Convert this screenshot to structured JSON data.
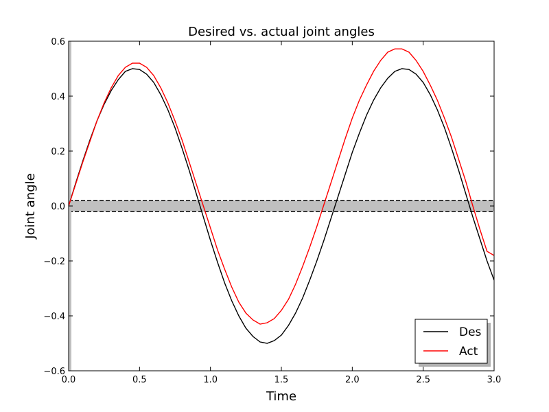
{
  "chart_data": {
    "type": "line",
    "title": "Desired vs. actual joint angles",
    "xlabel": "Time",
    "ylabel": "Joint angle",
    "xlim": [
      0.0,
      3.0
    ],
    "ylim": [
      -0.6,
      0.6
    ],
    "x_ticks": [
      0.0,
      0.5,
      1.0,
      1.5,
      2.0,
      2.5,
      3.0
    ],
    "x_tick_labels": [
      "0.0",
      "0.5",
      "1.0",
      "1.5",
      "2.0",
      "2.5",
      "3.0"
    ],
    "y_ticks": [
      -0.6,
      -0.4,
      -0.2,
      0.0,
      0.2,
      0.4,
      0.6
    ],
    "y_tick_labels": [
      "−0.6",
      "−0.4",
      "−0.2",
      "0.0",
      "0.2",
      "0.4",
      "0.6"
    ],
    "grid": false,
    "legend_position": "bottom-right",
    "shaded_band": {
      "y_min": -0.02,
      "y_max": 0.02,
      "color": "#c0c0c0",
      "border_style": "dashed"
    },
    "series": [
      {
        "name": "Des",
        "color": "#000000",
        "x": [
          0.0,
          0.05,
          0.1,
          0.15,
          0.2,
          0.25,
          0.3,
          0.35,
          0.4,
          0.45,
          0.5,
          0.55,
          0.6,
          0.65,
          0.7,
          0.75,
          0.8,
          0.85,
          0.9,
          0.95,
          1.0,
          1.05,
          1.1,
          1.15,
          1.2,
          1.25,
          1.3,
          1.35,
          1.4,
          1.45,
          1.5,
          1.55,
          1.6,
          1.65,
          1.7,
          1.75,
          1.8,
          1.85,
          1.9,
          1.95,
          2.0,
          2.05,
          2.1,
          2.15,
          2.2,
          2.25,
          2.3,
          2.35,
          2.4,
          2.45,
          2.5,
          2.55,
          2.6,
          2.65,
          2.7,
          2.75,
          2.8,
          2.85,
          2.9,
          2.95,
          3.0
        ],
        "y": [
          0.0,
          0.084,
          0.164,
          0.24,
          0.31,
          0.37,
          0.42,
          0.46,
          0.49,
          0.5,
          0.497,
          0.48,
          0.45,
          0.405,
          0.35,
          0.285,
          0.21,
          0.13,
          0.045,
          -0.04,
          -0.125,
          -0.205,
          -0.28,
          -0.345,
          -0.4,
          -0.445,
          -0.475,
          -0.495,
          -0.5,
          -0.49,
          -0.47,
          -0.435,
          -0.39,
          -0.335,
          -0.27,
          -0.2,
          -0.125,
          -0.045,
          0.035,
          0.115,
          0.195,
          0.265,
          0.33,
          0.385,
          0.43,
          0.465,
          0.49,
          0.5,
          0.497,
          0.48,
          0.45,
          0.405,
          0.35,
          0.285,
          0.21,
          0.13,
          0.045,
          -0.04,
          -0.12,
          -0.2,
          -0.27
        ]
      },
      {
        "name": "Act",
        "color": "#ff0000",
        "x": [
          0.0,
          0.05,
          0.1,
          0.15,
          0.2,
          0.25,
          0.3,
          0.35,
          0.4,
          0.45,
          0.5,
          0.55,
          0.6,
          0.65,
          0.7,
          0.75,
          0.8,
          0.85,
          0.9,
          0.95,
          1.0,
          1.05,
          1.1,
          1.15,
          1.2,
          1.25,
          1.3,
          1.35,
          1.4,
          1.45,
          1.5,
          1.55,
          1.6,
          1.65,
          1.7,
          1.75,
          1.8,
          1.85,
          1.9,
          1.95,
          2.0,
          2.05,
          2.1,
          2.15,
          2.2,
          2.25,
          2.3,
          2.35,
          2.4,
          2.45,
          2.5,
          2.55,
          2.6,
          2.65,
          2.7,
          2.75,
          2.8,
          2.85,
          2.9,
          2.95,
          3.0
        ],
        "y": [
          0.0,
          0.08,
          0.16,
          0.235,
          0.31,
          0.375,
          0.43,
          0.475,
          0.505,
          0.52,
          0.52,
          0.505,
          0.475,
          0.43,
          0.375,
          0.31,
          0.24,
          0.16,
          0.08,
          0.0,
          -0.08,
          -0.16,
          -0.23,
          -0.295,
          -0.35,
          -0.39,
          -0.415,
          -0.43,
          -0.425,
          -0.41,
          -0.38,
          -0.34,
          -0.285,
          -0.22,
          -0.15,
          -0.075,
          0.005,
          0.085,
          0.165,
          0.245,
          0.32,
          0.385,
          0.44,
          0.49,
          0.53,
          0.56,
          0.572,
          0.572,
          0.56,
          0.53,
          0.49,
          0.44,
          0.385,
          0.32,
          0.25,
          0.17,
          0.09,
          0.0,
          -0.085,
          -0.165,
          -0.18
        ]
      }
    ]
  }
}
